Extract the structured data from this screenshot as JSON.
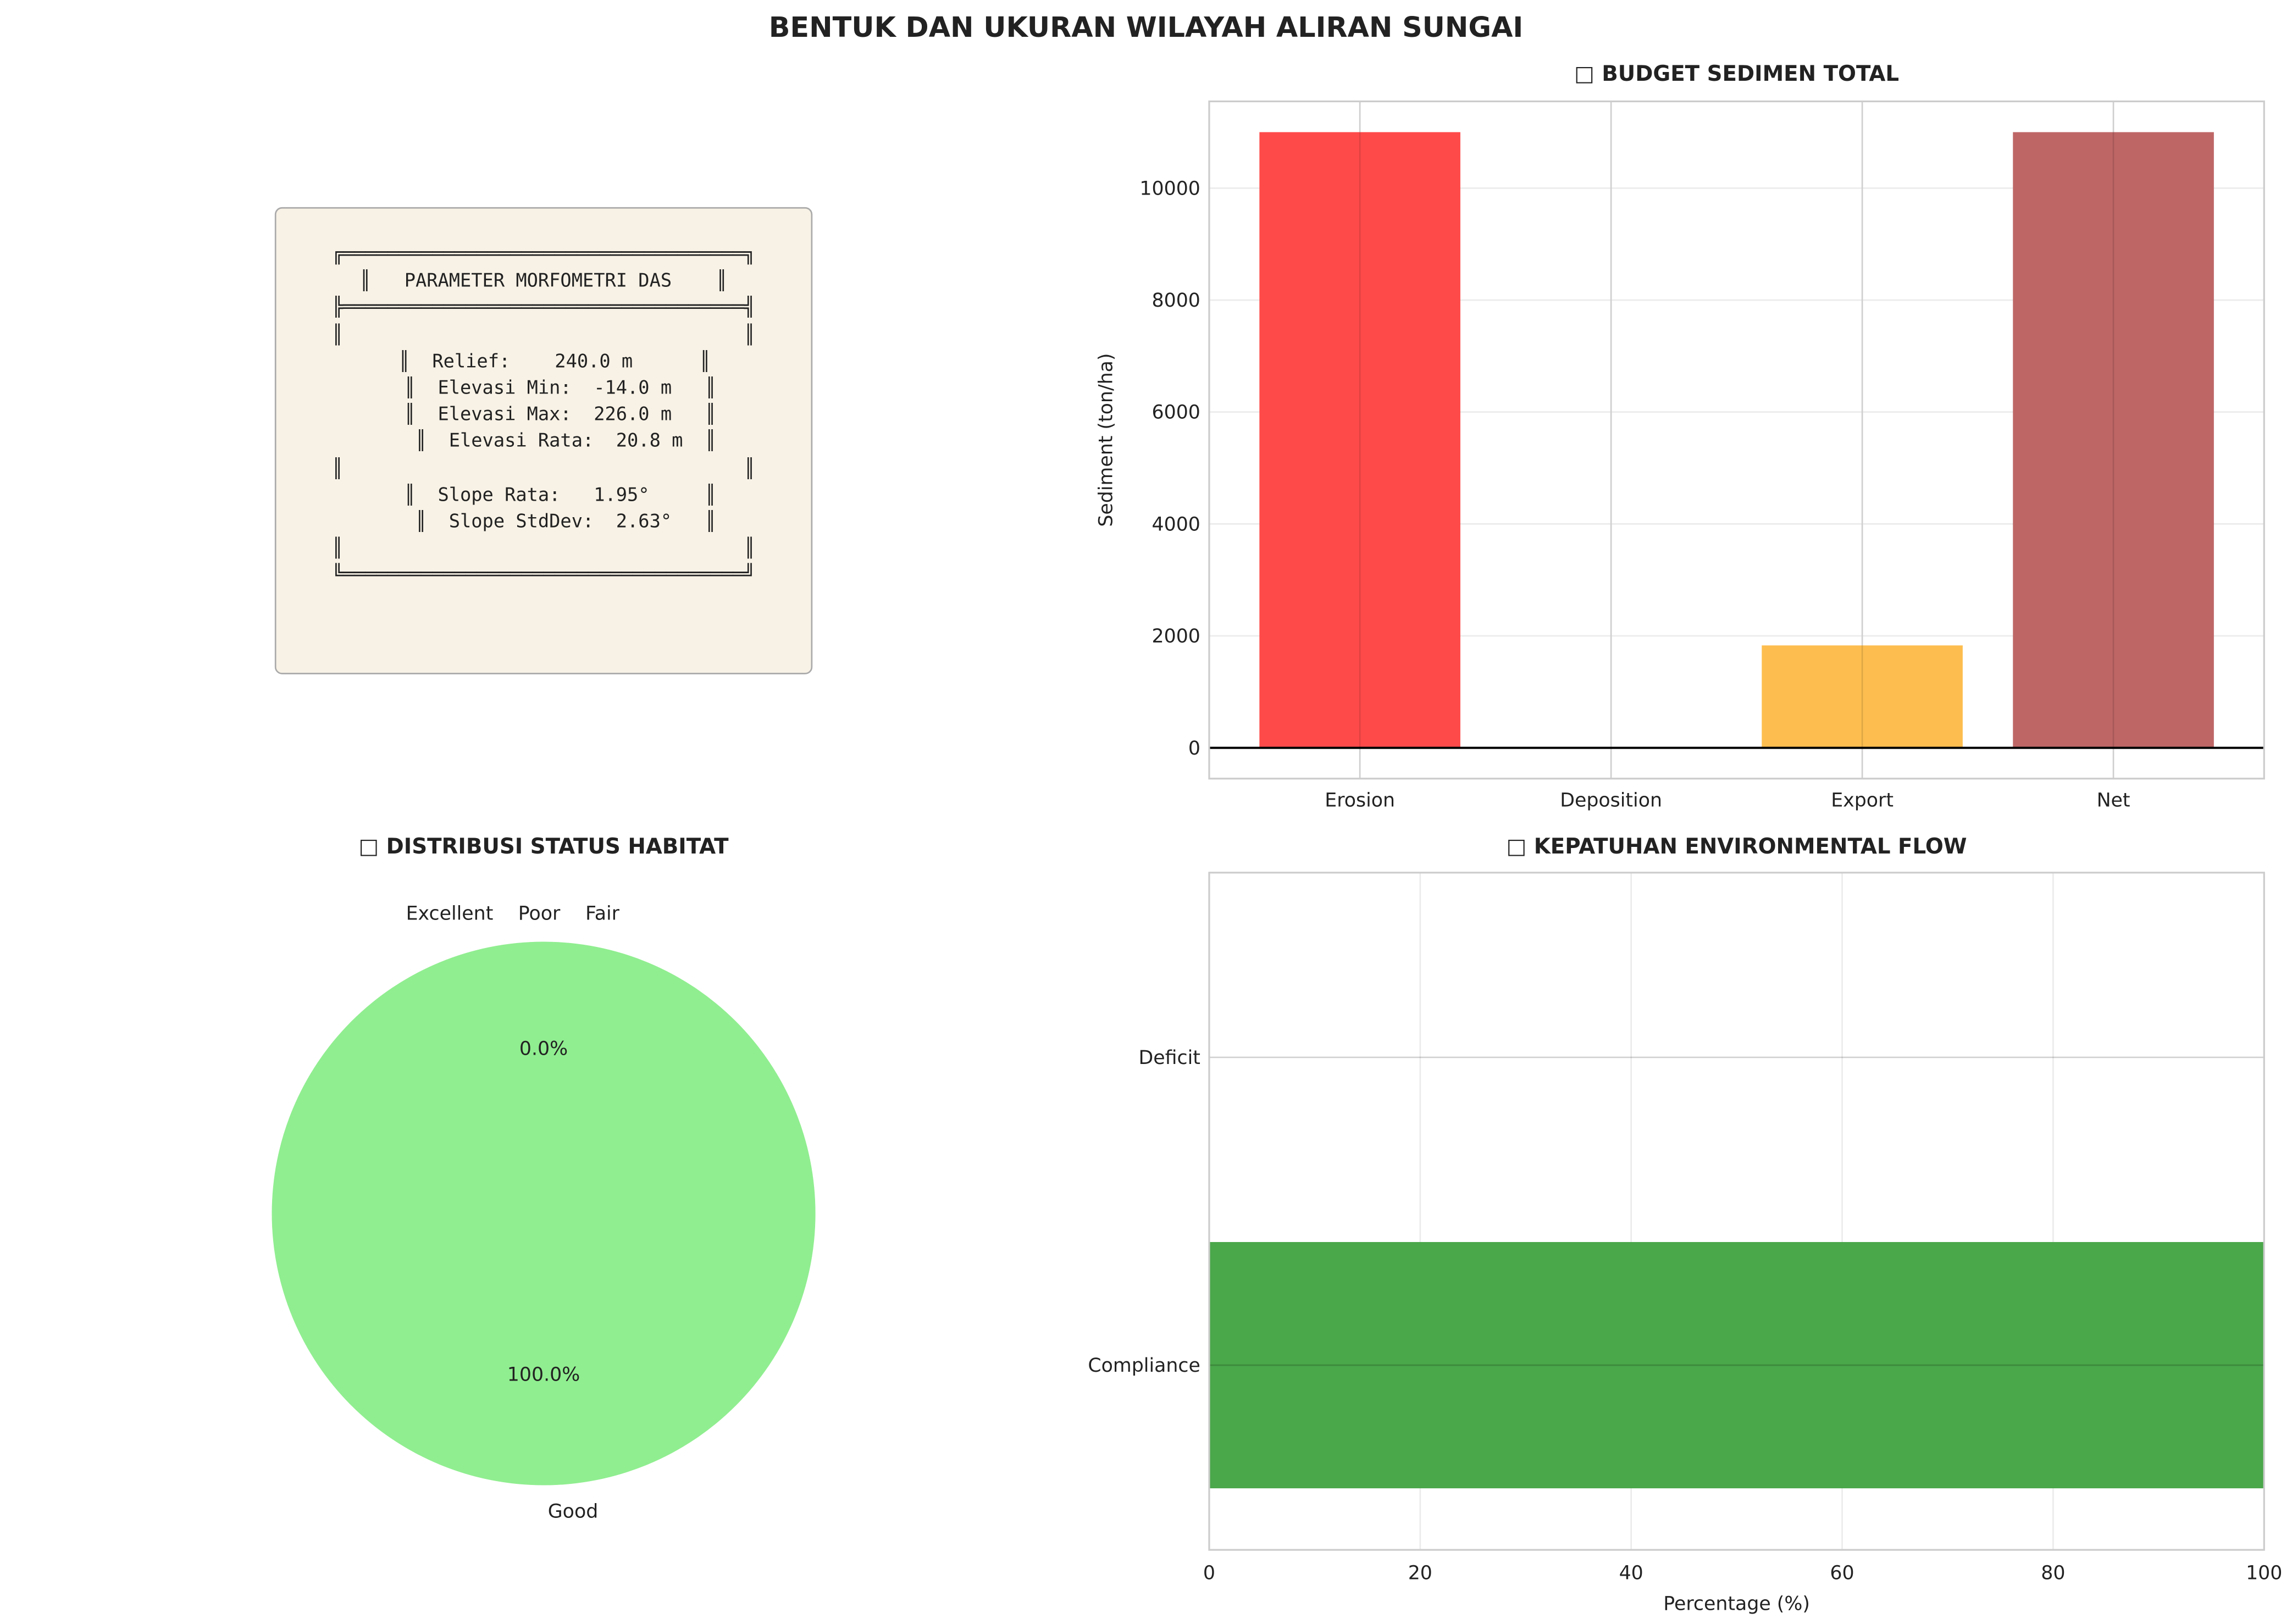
{
  "title": "BENTUK DAN UKURAN WILAYAH ALIRAN SUNGAI",
  "morphometry": {
    "lines": [
      "╔════════════════════════════════════╗",
      "║   PARAMETER MORFOMETRI DAS    ║",
      "╠════════════════════════════════════╣",
      "║                                    ║",
      "  ║  Relief:    240.0 m      ║",
      "   ║  Elevasi Min:  -14.0 m   ║",
      "   ║  Elevasi Max:  226.0 m   ║",
      "    ║  Elevasi Rata:  20.8 m  ║",
      "║                                    ║",
      "   ║  Slope Rata:   1.95°     ║",
      "    ║  Slope StdDev:  2.63°   ║",
      "║                                    ║",
      "╚════════════════════════════════════╝"
    ]
  },
  "chart_data": [
    {
      "type": "bar",
      "title": "□ BUDGET SEDIMEN TOTAL",
      "categories": [
        "Erosion",
        "Deposition",
        "Export",
        "Net"
      ],
      "values": [
        11000,
        0,
        1830,
        11000
      ],
      "colors": [
        "#ff4a4a",
        "#1f77b4",
        "#fdbe4f",
        "#be6666"
      ],
      "xlabel": "",
      "ylabel": "Sediment (ton/ha)",
      "ylim": [
        -550,
        11550
      ],
      "yticks": [
        0,
        2000,
        4000,
        6000,
        8000,
        10000
      ],
      "grid": true
    },
    {
      "type": "pie",
      "title": "□ DISTRIBUSI STATUS HABITAT",
      "labels": [
        "Excellent",
        "Fair",
        "Poor",
        "Good"
      ],
      "values": [
        0,
        0,
        0,
        100
      ],
      "pct_labels": [
        "0.0%",
        "100.0%"
      ],
      "colors": [
        "#90ee90"
      ]
    },
    {
      "type": "bar",
      "orientation": "horizontal",
      "title": "□ KEPATUHAN ENVIRONMENTAL FLOW",
      "categories": [
        "Compliance",
        "Deficit"
      ],
      "values": [
        100,
        0
      ],
      "colors": [
        "#4aa74a",
        "#e05050"
      ],
      "xlabel": "Percentage (%)",
      "xlim": [
        0,
        100
      ],
      "xticks": [
        0,
        20,
        40,
        60,
        80,
        100
      ],
      "grid": true
    }
  ]
}
